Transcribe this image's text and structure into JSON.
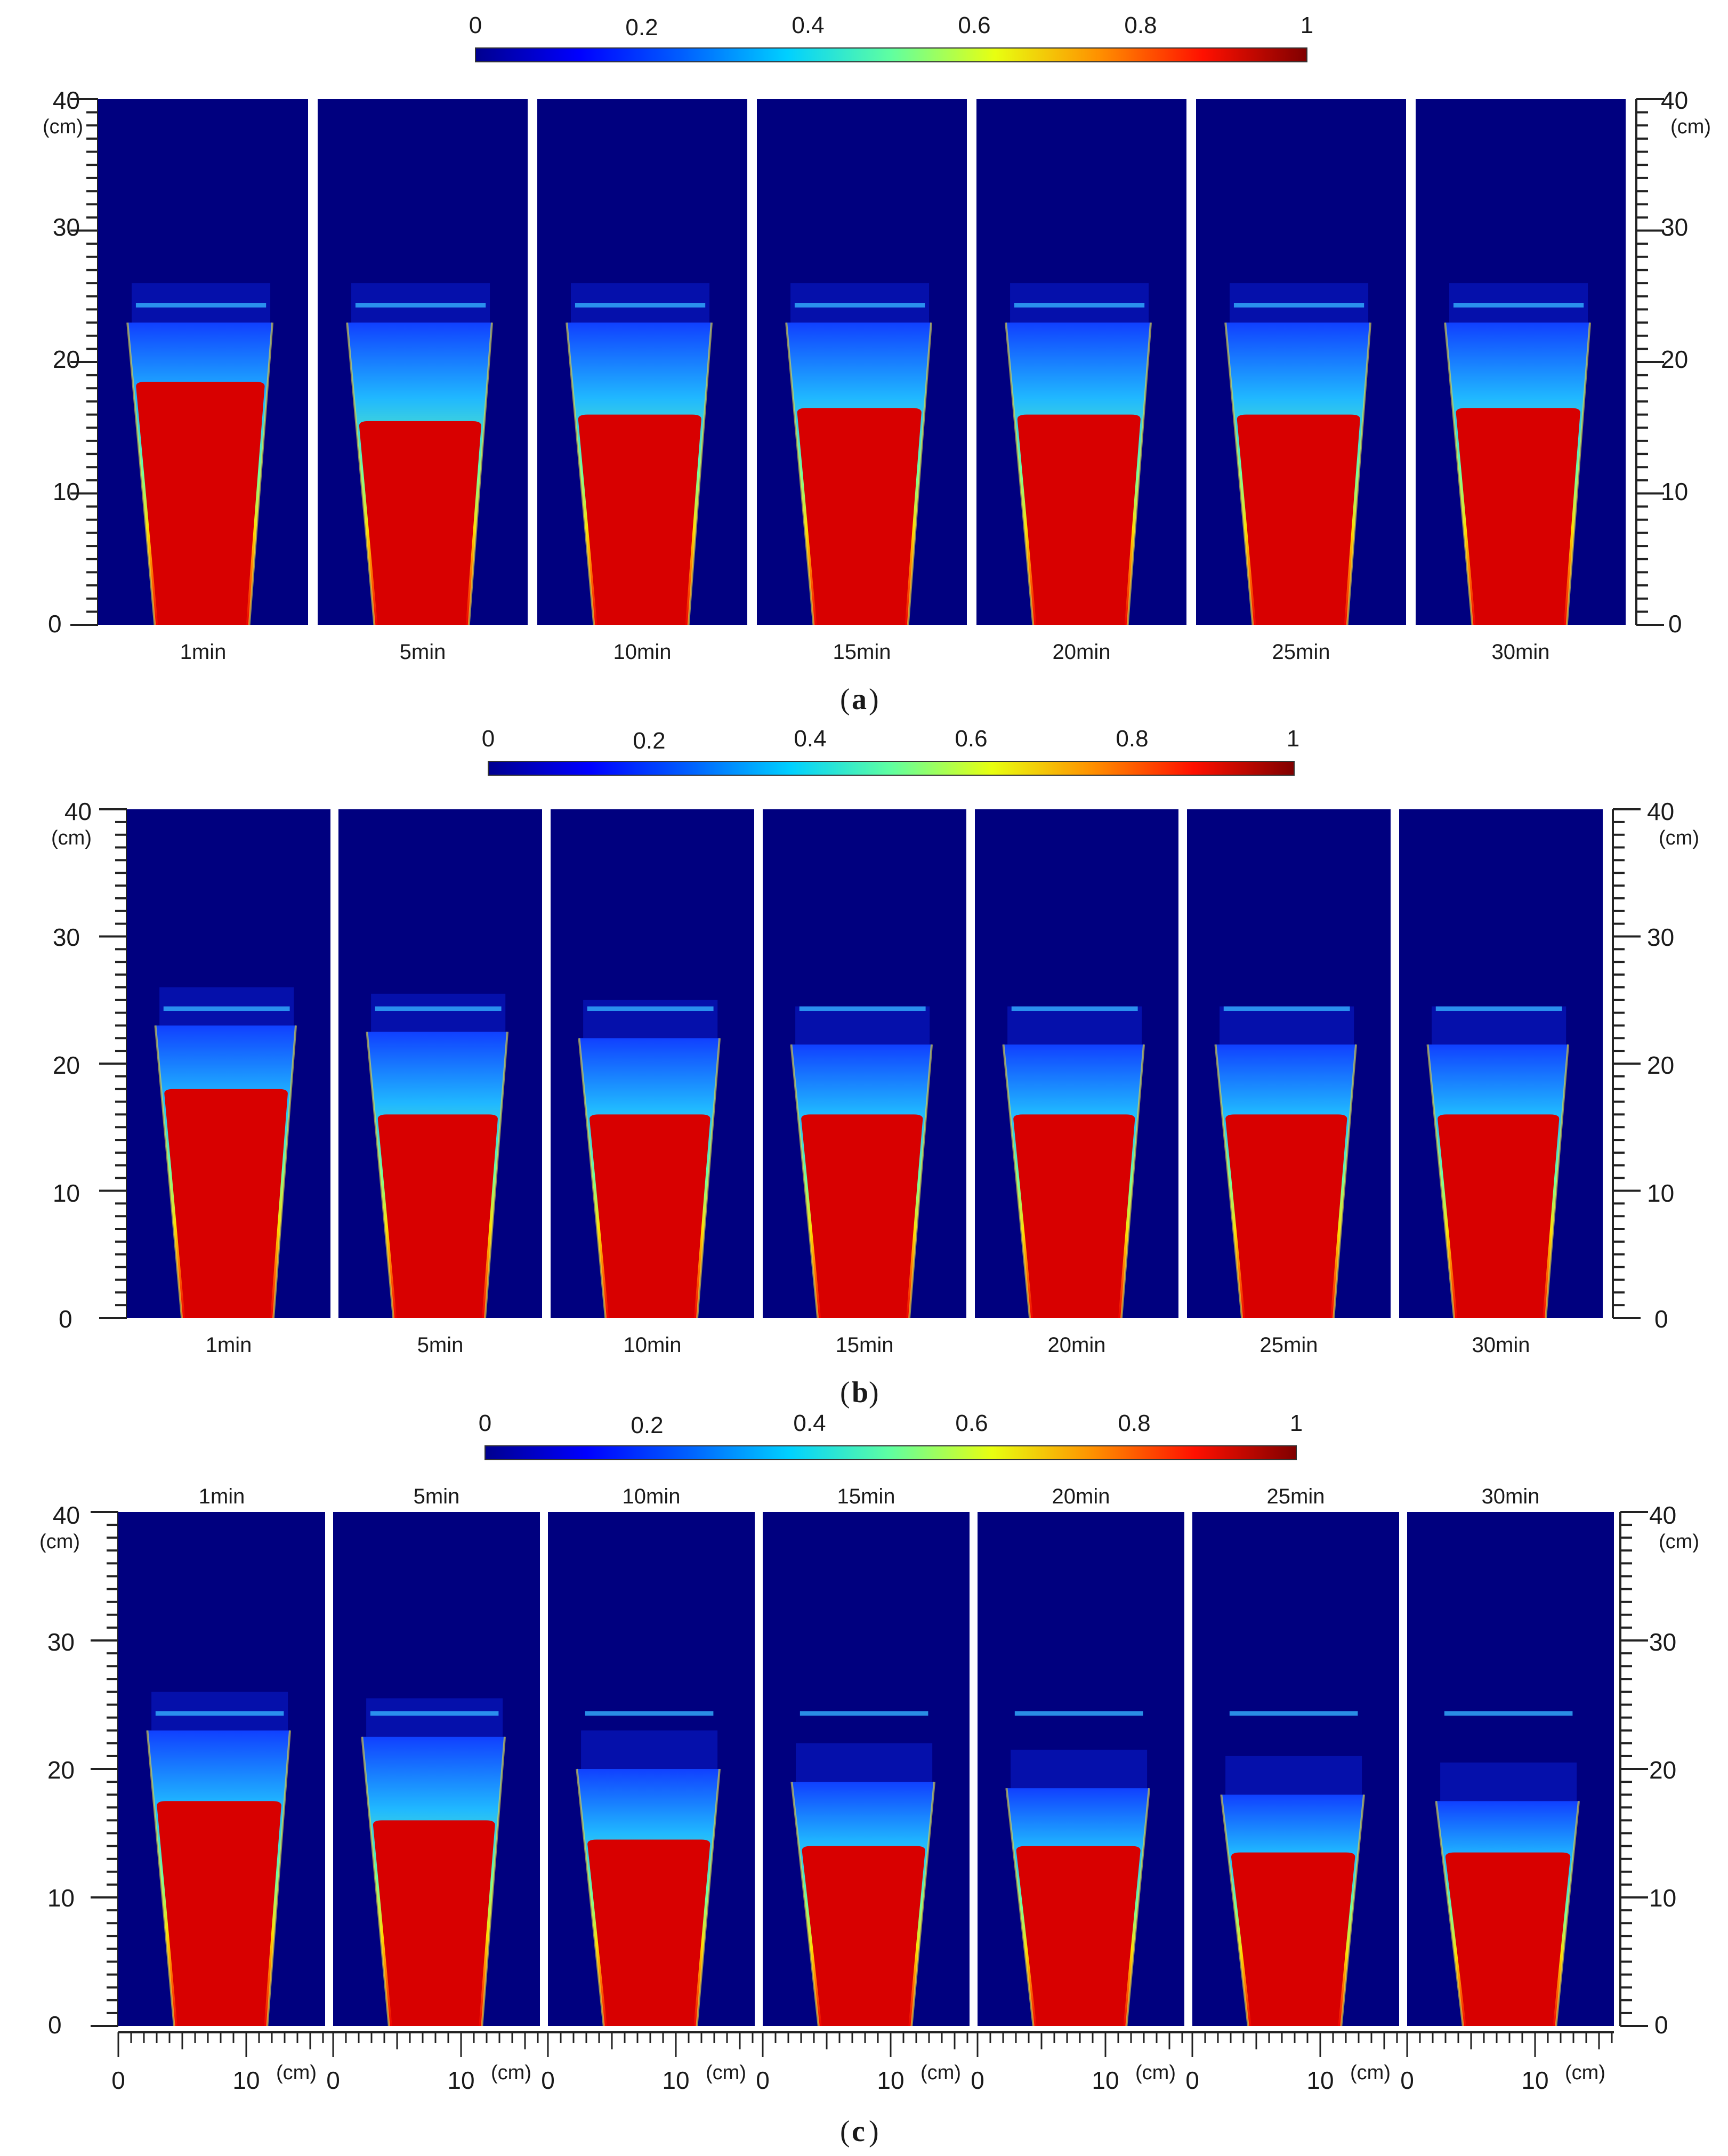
{
  "figure": {
    "colorbar_ticks": [
      "0",
      "0.2",
      "0.4",
      "0.6",
      "0.8",
      "1"
    ],
    "vertical_axis": {
      "ticks": [
        "0",
        "10",
        "20",
        "30",
        "40"
      ],
      "unit": "(cm)"
    },
    "horizontal_axis": {
      "ticks": [
        "0",
        "10"
      ],
      "unit": "(cm)"
    },
    "colors": {
      "background": "#00007f",
      "colormap": [
        "#00008f",
        "#0000ff",
        "#0080ff",
        "#00ffff",
        "#80ff80",
        "#ffff00",
        "#ff8000",
        "#ff0000",
        "#800000"
      ]
    },
    "panels": [
      {
        "paren_open": "(",
        "letter": "a",
        "paren_close": ")",
        "times": [
          "1min",
          "5min",
          "10min",
          "15min",
          "20min",
          "25min",
          "30min"
        ],
        "bed_top_cm": [
          23,
          23,
          23,
          23,
          23,
          23,
          23
        ],
        "red_top_cm": [
          18.5,
          15.5,
          16,
          16.5,
          16,
          16,
          16.5
        ]
      },
      {
        "paren_open": "(",
        "letter": "b",
        "paren_close": ")",
        "times": [
          "1min",
          "5min",
          "10min",
          "15min",
          "20min",
          "25min",
          "30min"
        ],
        "bed_top_cm": [
          23,
          22.5,
          22,
          21.5,
          21.5,
          21.5,
          21.5
        ],
        "red_top_cm": [
          18,
          16,
          16,
          16,
          16,
          16,
          16
        ]
      },
      {
        "paren_open": "(",
        "letter": "c",
        "paren_close": ")",
        "times": [
          "1min",
          "5min",
          "10min",
          "15min",
          "20min",
          "25min",
          "30min"
        ],
        "bed_top_cm": [
          23,
          22.5,
          20,
          19,
          18.5,
          18,
          17.5
        ],
        "red_top_cm": [
          17.5,
          16,
          14.5,
          14,
          14,
          13.5,
          13.5
        ]
      }
    ]
  }
}
